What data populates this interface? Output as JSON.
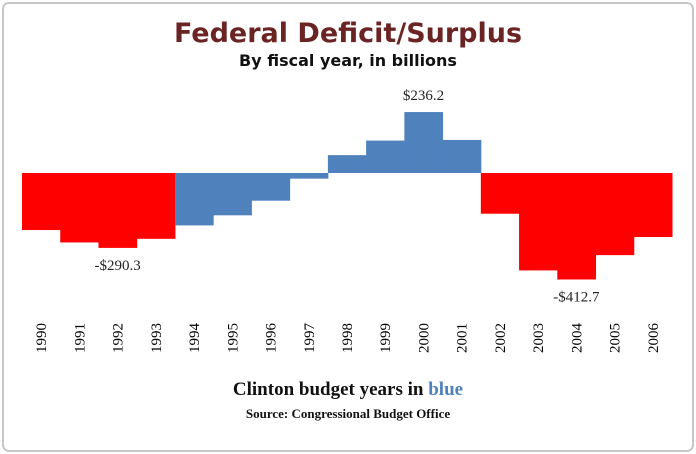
{
  "chart_data": {
    "type": "bar",
    "title": "Federal Deficit/Surplus",
    "subtitle": "By fiscal year, in billions",
    "categories": [
      "1990",
      "1991",
      "1992",
      "1993",
      "1994",
      "1995",
      "1996",
      "1997",
      "1998",
      "1999",
      "2000",
      "2001",
      "2002",
      "2003",
      "2004",
      "2005",
      "2006"
    ],
    "values": [
      -221.0,
      -269.2,
      -290.3,
      -255.1,
      -203.2,
      -164.0,
      -107.4,
      -21.9,
      69.3,
      125.6,
      236.2,
      128.2,
      -157.8,
      -377.6,
      -412.7,
      -318.3,
      -248.2
    ],
    "value_labels": [
      null,
      null,
      "-$290.3",
      null,
      null,
      null,
      null,
      null,
      null,
      null,
      "$236.2",
      null,
      null,
      null,
      "-$412.7",
      null,
      null
    ],
    "colors": [
      "#ff0000",
      "#ff0000",
      "#ff0000",
      "#ff0000",
      "#4f81bd",
      "#4f81bd",
      "#4f81bd",
      "#4f81bd",
      "#4f81bd",
      "#4f81bd",
      "#4f81bd",
      "#4f81bd",
      "#ff0000",
      "#ff0000",
      "#ff0000",
      "#ff0000",
      "#ff0000"
    ],
    "note": {
      "text": "Clinton budget years in",
      "highlight": "blue",
      "highlight_color": "#4f81bd"
    },
    "source": "Source: Congressional Budget Office"
  }
}
